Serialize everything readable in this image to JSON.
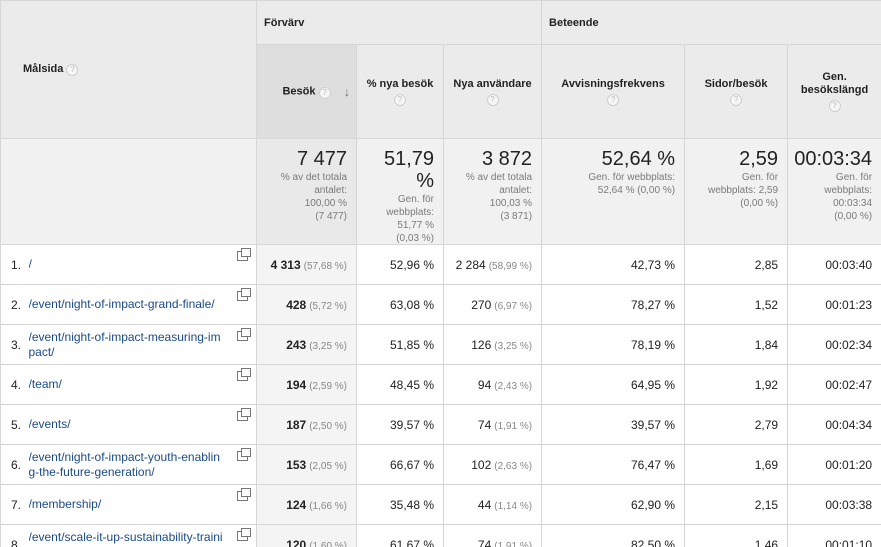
{
  "groups": {
    "acquisition": "Förvärv",
    "behavior": "Beteende"
  },
  "dimension": {
    "label": "Målsida"
  },
  "columns": {
    "sessions": "Besök",
    "new_sessions": "% nya besök",
    "new_users": "Nya användare",
    "bounce": "Avvisningsfrekvens",
    "pages": "Sidor/besök",
    "duration_1": "Gen.",
    "duration_2": "besökslängd"
  },
  "totals": {
    "sessions": {
      "value": "7 477",
      "s1": "% av det totala",
      "s2": "antalet:",
      "s3": "100,00 %",
      "s4": "(7 477)"
    },
    "new_sessions": {
      "value": "51,79 %",
      "s1": "Gen. för",
      "s2": "webbplats:",
      "s3": "51,77 %",
      "s4": "(0,03 %)"
    },
    "new_users": {
      "value": "3 872",
      "s1": "% av det totala",
      "s2": "antalet:",
      "s3": "100,03 %",
      "s4": "(3 871)"
    },
    "bounce": {
      "value": "52,64 %",
      "s1": "Gen. för webbplats:",
      "s2": "52,64 % (0,00 %)"
    },
    "pages": {
      "value": "2,59",
      "s1": "Gen. för",
      "s2": "webbplats: 2,59",
      "s3": "(0,00 %)"
    },
    "duration": {
      "value": "00:03:34",
      "s1": "Gen. för",
      "s2": "webbplats:",
      "s3": "00:03:34",
      "s4": "(0,00 %)"
    }
  },
  "rows": [
    {
      "rank": "1.",
      "page": "/",
      "sessions": "4 313",
      "sessions_pct": "(57,68 %)",
      "new_sessions": "52,96 %",
      "new_users": "2 284",
      "new_users_pct": "(58,99 %)",
      "bounce": "42,73 %",
      "pages": "2,85",
      "duration": "00:03:40"
    },
    {
      "rank": "2.",
      "page": "/event/night-of-impact-grand-finale/",
      "sessions": "428",
      "sessions_pct": "(5,72 %)",
      "new_sessions": "63,08 %",
      "new_users": "270",
      "new_users_pct": "(6,97 %)",
      "bounce": "78,27 %",
      "pages": "1,52",
      "duration": "00:01:23"
    },
    {
      "rank": "3.",
      "page": "/event/night-of-impact-measuring-impact/",
      "sessions": "243",
      "sessions_pct": "(3,25 %)",
      "new_sessions": "51,85 %",
      "new_users": "126",
      "new_users_pct": "(3,25 %)",
      "bounce": "78,19 %",
      "pages": "1,84",
      "duration": "00:02:34"
    },
    {
      "rank": "4.",
      "page": "/team/",
      "sessions": "194",
      "sessions_pct": "(2,59 %)",
      "new_sessions": "48,45 %",
      "new_users": "94",
      "new_users_pct": "(2,43 %)",
      "bounce": "64,95 %",
      "pages": "1,92",
      "duration": "00:02:47"
    },
    {
      "rank": "5.",
      "page": "/events/",
      "sessions": "187",
      "sessions_pct": "(2,50 %)",
      "new_sessions": "39,57 %",
      "new_users": "74",
      "new_users_pct": "(1,91 %)",
      "bounce": "39,57 %",
      "pages": "2,79",
      "duration": "00:04:34"
    },
    {
      "rank": "6.",
      "page": "/event/night-of-impact-youth-enabling-the-future-generation/",
      "sessions": "153",
      "sessions_pct": "(2,05 %)",
      "new_sessions": "66,67 %",
      "new_users": "102",
      "new_users_pct": "(2,63 %)",
      "bounce": "76,47 %",
      "pages": "1,69",
      "duration": "00:01:20"
    },
    {
      "rank": "7.",
      "page": "/membership/",
      "sessions": "124",
      "sessions_pct": "(1,66 %)",
      "new_sessions": "35,48 %",
      "new_users": "44",
      "new_users_pct": "(1,14 %)",
      "bounce": "62,90 %",
      "pages": "2,15",
      "duration": "00:03:38"
    },
    {
      "rank": "8.",
      "page": "/event/scale-it-up-sustainability-training-for-women-entrepreneurs/",
      "sessions": "120",
      "sessions_pct": "(1,60 %)",
      "new_sessions": "61,67 %",
      "new_users": "74",
      "new_users_pct": "(1,91 %)",
      "bounce": "82,50 %",
      "pages": "1,46",
      "duration": "00:01:10"
    }
  ]
}
